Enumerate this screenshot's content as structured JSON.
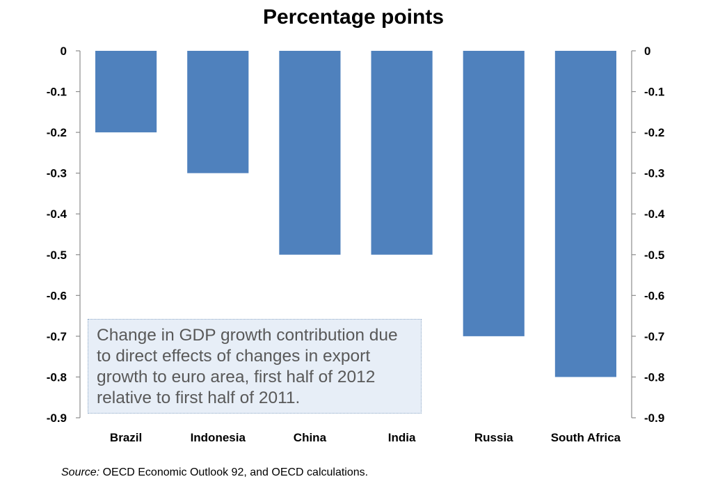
{
  "chart_data": {
    "type": "bar",
    "title": "Percentage points",
    "categories": [
      "Brazil",
      "Indonesia",
      "China",
      "India",
      "Russia",
      "South Africa"
    ],
    "values": [
      -0.2,
      -0.3,
      -0.5,
      -0.5,
      -0.7,
      -0.8
    ],
    "ylim": [
      -0.9,
      0
    ],
    "y_ticks": [
      "0",
      "-0.1",
      "-0.2",
      "-0.3",
      "-0.4",
      "-0.5",
      "-0.6",
      "-0.7",
      "-0.8",
      "-0.9"
    ],
    "y_tick_values": [
      0,
      -0.1,
      -0.2,
      -0.3,
      -0.4,
      -0.5,
      -0.6,
      -0.7,
      -0.8,
      -0.9
    ],
    "secondary_y_axis": true,
    "grid": false,
    "bar_color": "#4f81bd",
    "annotation": "Change in GDP growth contribution due to direct effects of changes in export growth to euro area, first half of 2012 relative to first half of 2011.",
    "source_label": "Source:",
    "source_text": " OECD Economic Outlook 92, and OECD calculations."
  }
}
